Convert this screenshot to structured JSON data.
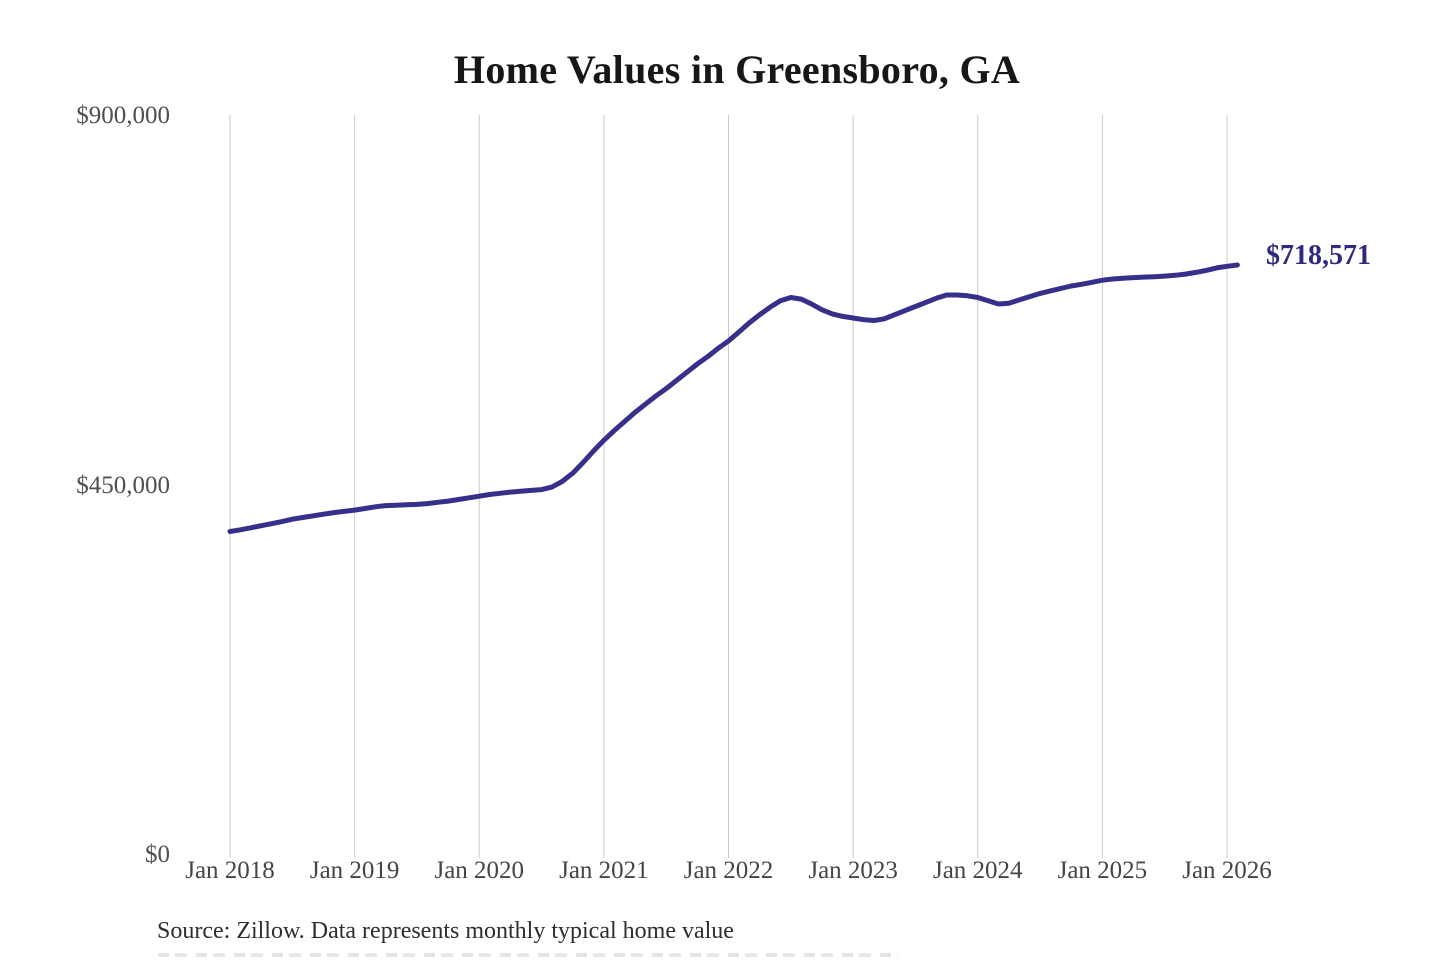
{
  "title": "Home Values in Greensboro, GA",
  "source_note": "Source: Zillow. Data represents monthly typical home value",
  "end_label": "$718,571",
  "colors": {
    "line": "#37308a",
    "end_label": "#2f2a7e",
    "gridline": "#cbcbcb",
    "title_text": "#171717",
    "axis_text": "#4f4f4f"
  },
  "chart_data": {
    "type": "line",
    "title": "Home Values in Greensboro, GA",
    "xlabel": "",
    "ylabel": "",
    "x_unit": "month",
    "x_start": "Jan 2018",
    "x_end": "Feb 2026",
    "ylim": [
      0,
      900000
    ],
    "grid": "vertical-only",
    "legend": "none",
    "y_ticks": [
      {
        "label": "$0",
        "value": 0
      },
      {
        "label": "$450,000",
        "value": 450000
      },
      {
        "label": "$900,000",
        "value": 900000
      }
    ],
    "x_tick_labels": [
      "Jan 2018",
      "Jan 2019",
      "Jan 2020",
      "Jan 2021",
      "Jan 2022",
      "Jan 2023",
      "Jan 2024",
      "Jan 2025",
      "Jan 2026"
    ],
    "x_tick_month_indices": [
      0,
      12,
      24,
      36,
      48,
      60,
      72,
      84,
      96
    ],
    "final_value": 718571,
    "final_value_label": "$718,571",
    "series": [
      {
        "name": "Monthly typical home value",
        "values": [
          394000,
          396000,
          398500,
          401000,
          403500,
          406000,
          409000,
          411000,
          413000,
          415000,
          417000,
          418500,
          420000,
          422000,
          424000,
          425500,
          426000,
          426500,
          427000,
          428000,
          429500,
          431000,
          433000,
          435000,
          437000,
          439000,
          440500,
          442000,
          443000,
          444000,
          445000,
          448000,
          455000,
          465000,
          478000,
          492000,
          505000,
          517000,
          528000,
          539000,
          549000,
          559000,
          568000,
          578000,
          588000,
          598000,
          607000,
          617000,
          626000,
          637000,
          648000,
          658000,
          667000,
          675000,
          679000,
          677000,
          671000,
          664000,
          659000,
          656000,
          654000,
          652000,
          651000,
          653000,
          658000,
          663000,
          668000,
          673000,
          678000,
          682000,
          682000,
          681000,
          679000,
          675000,
          671000,
          672000,
          676000,
          680000,
          684000,
          687000,
          690000,
          693000,
          695000,
          697500,
          700000,
          701500,
          702500,
          703200,
          703800,
          704300,
          705000,
          706000,
          707500,
          709500,
          712000,
          715000,
          717000,
          718571
        ]
      }
    ]
  }
}
